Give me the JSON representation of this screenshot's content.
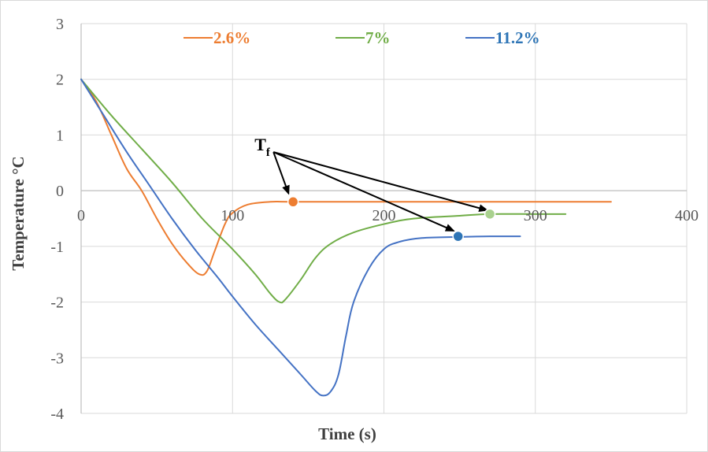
{
  "chart_data": {
    "type": "line",
    "title": "",
    "xlabel": "Time (s)",
    "ylabel": "Temperature °C",
    "xlim": [
      0,
      400
    ],
    "ylim": [
      -4,
      3
    ],
    "xticks": [
      0,
      100,
      200,
      300,
      400
    ],
    "yticks": [
      -4,
      -3,
      -2,
      -1,
      0,
      1,
      2,
      3
    ],
    "xtick_labels": [
      "0",
      "100",
      "200",
      "300",
      "400"
    ],
    "ytick_labels": [
      "-4",
      "-3",
      "-2",
      "-1",
      "0",
      "1",
      "2",
      "3"
    ],
    "grid": true,
    "legend_position": "top",
    "series": [
      {
        "name": "2.6%",
        "color": "#ed7d31",
        "points": [
          [
            0,
            2
          ],
          [
            10,
            1.6
          ],
          [
            20,
            1.0
          ],
          [
            30,
            0.4
          ],
          [
            40,
            0.0
          ],
          [
            50,
            -0.5
          ],
          [
            60,
            -0.95
          ],
          [
            70,
            -1.3
          ],
          [
            78,
            -1.5
          ],
          [
            83,
            -1.45
          ],
          [
            88,
            -1.1
          ],
          [
            95,
            -0.6
          ],
          [
            100,
            -0.4
          ],
          [
            110,
            -0.25
          ],
          [
            125,
            -0.2
          ],
          [
            140,
            -0.2
          ],
          [
            200,
            -0.2
          ],
          [
            300,
            -0.2
          ],
          [
            350,
            -0.2
          ]
        ]
      },
      {
        "name": "7%",
        "color": "#70ad47",
        "points": [
          [
            0,
            2
          ],
          [
            20,
            1.35
          ],
          [
            40,
            0.75
          ],
          [
            60,
            0.15
          ],
          [
            80,
            -0.5
          ],
          [
            100,
            -1.05
          ],
          [
            115,
            -1.5
          ],
          [
            125,
            -1.85
          ],
          [
            131,
            -2.0
          ],
          [
            135,
            -1.95
          ],
          [
            145,
            -1.6
          ],
          [
            155,
            -1.2
          ],
          [
            165,
            -0.95
          ],
          [
            180,
            -0.75
          ],
          [
            200,
            -0.6
          ],
          [
            220,
            -0.5
          ],
          [
            250,
            -0.45
          ],
          [
            270,
            -0.42
          ],
          [
            300,
            -0.42
          ],
          [
            320,
            -0.42
          ]
        ]
      },
      {
        "name": "11.2%",
        "color": "#4472c4",
        "points": [
          [
            0,
            2
          ],
          [
            15,
            1.35
          ],
          [
            30,
            0.7
          ],
          [
            45,
            0.1
          ],
          [
            60,
            -0.5
          ],
          [
            75,
            -1.05
          ],
          [
            90,
            -1.55
          ],
          [
            100,
            -1.9
          ],
          [
            115,
            -2.4
          ],
          [
            130,
            -2.85
          ],
          [
            145,
            -3.3
          ],
          [
            155,
            -3.6
          ],
          [
            160,
            -3.68
          ],
          [
            165,
            -3.6
          ],
          [
            170,
            -3.3
          ],
          [
            175,
            -2.6
          ],
          [
            180,
            -2.0
          ],
          [
            190,
            -1.4
          ],
          [
            200,
            -1.05
          ],
          [
            210,
            -0.92
          ],
          [
            225,
            -0.85
          ],
          [
            250,
            -0.83
          ],
          [
            270,
            -0.82
          ],
          [
            290,
            -0.82
          ]
        ]
      }
    ],
    "markers": [
      {
        "series": "2.6%",
        "x": 140,
        "y": -0.2,
        "color": "#ed7d31"
      },
      {
        "series": "7%",
        "x": 270,
        "y": -0.42,
        "color": "#a9d18e"
      },
      {
        "series": "11.2%",
        "x": 249,
        "y": -0.82,
        "color": "#2e75b6"
      }
    ],
    "annotation": {
      "text": "T",
      "subscript": "f",
      "anchor": [
        126,
        0.75
      ],
      "arrow_targets": [
        [
          137,
          -0.05
        ],
        [
          268,
          -0.35
        ],
        [
          246,
          -0.72
        ]
      ]
    }
  }
}
